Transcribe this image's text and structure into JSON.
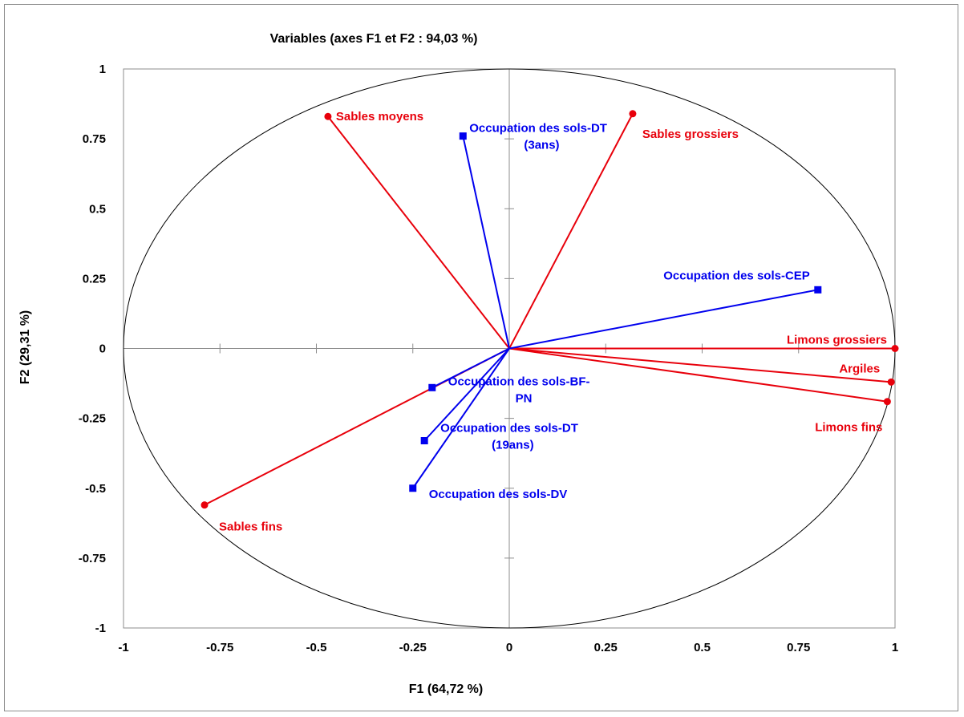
{
  "chart_data": {
    "type": "scatter",
    "subtype": "correlation-circle",
    "title": "Variables (axes F1 et F2 : 94,03 %)",
    "xlabel": "F1 (64,72 %)",
    "ylabel": "F2 (29,31 %)",
    "xlim": [
      -1,
      1
    ],
    "ylim": [
      -1,
      1
    ],
    "xticks": [
      -1,
      -0.75,
      -0.5,
      -0.25,
      0,
      0.25,
      0.5,
      0.75,
      1
    ],
    "yticks": [
      -1,
      -0.75,
      -0.5,
      -0.25,
      0,
      0.25,
      0.5,
      0.75,
      1
    ],
    "x_tick_labels": [
      "-1",
      "-0.75",
      "-0.5",
      "-0.25",
      "0",
      "0.25",
      "0.5",
      "0.75",
      "1"
    ],
    "y_tick_labels": [
      "-1",
      "-0.75",
      "-0.5",
      "-0.25",
      "0",
      "0.25",
      "0.5",
      "0.75",
      "1"
    ],
    "unit_circle": true,
    "grid": false,
    "series": [
      {
        "color": "#e8000b",
        "marker": "circle",
        "points": [
          {
            "label": "Sables moyens",
            "x": -0.47,
            "y": 0.83
          },
          {
            "label": "Sables grossiers",
            "x": 0.32,
            "y": 0.84
          },
          {
            "label": "Limons grossiers",
            "x": 1.0,
            "y": 0.0
          },
          {
            "label": "Argiles",
            "x": 0.99,
            "y": -0.12
          },
          {
            "label": "Limons fins",
            "x": 0.98,
            "y": -0.19
          },
          {
            "label": "Sables fins",
            "x": -0.79,
            "y": -0.56
          }
        ]
      },
      {
        "color": "#0000ee",
        "marker": "square",
        "points": [
          {
            "label_lines": [
              "Occupation des sols-DT",
              "(3ans)"
            ],
            "x": -0.12,
            "y": 0.76
          },
          {
            "label_lines": [
              "Occupation des sols-CEP"
            ],
            "x": 0.8,
            "y": 0.21
          },
          {
            "label_lines": [
              "Occupation des sols-BF-",
              "PN"
            ],
            "x": -0.2,
            "y": -0.14
          },
          {
            "label_lines": [
              "Occupation des sols-DT",
              "(19ans)"
            ],
            "x": -0.22,
            "y": -0.33
          },
          {
            "label_lines": [
              "Occupation des sols-DV"
            ],
            "x": -0.25,
            "y": -0.5
          }
        ]
      }
    ]
  }
}
